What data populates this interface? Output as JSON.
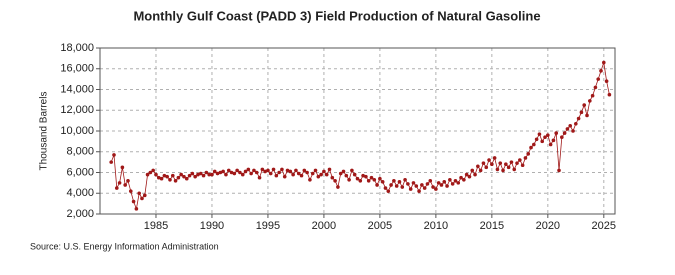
{
  "chart_data": {
    "type": "line",
    "title": "Monthly Gulf Coast (PADD 3) Field Production of Natural Gasoline",
    "ylabel": "Thousand Barrels",
    "source": "Source: U.S. Energy Information Administration",
    "xlim": [
      1980,
      2026
    ],
    "xticks": [
      1985,
      1990,
      1995,
      2000,
      2005,
      2010,
      2015,
      2020,
      2025
    ],
    "ylim": [
      2000,
      18000
    ],
    "yticks": [
      {
        "value": 2000,
        "label": "2,000"
      },
      {
        "value": 4000,
        "label": "4,000"
      },
      {
        "value": 6000,
        "label": "6,000"
      },
      {
        "value": 8000,
        "label": "8,000"
      },
      {
        "value": 10000,
        "label": "10,000"
      },
      {
        "value": 12000,
        "label": "12,000"
      },
      {
        "value": 14000,
        "label": "14,000"
      },
      {
        "value": 16000,
        "label": "16,000"
      },
      {
        "value": 18000,
        "label": "18,000"
      }
    ],
    "grid": true,
    "color": "#a01818",
    "x": [
      1981,
      1981.25,
      1981.5,
      1981.75,
      1982,
      1982.25,
      1982.5,
      1982.75,
      1983,
      1983.25,
      1983.5,
      1983.75,
      1984,
      1984.25,
      1984.5,
      1984.75,
      1985,
      1985.25,
      1985.5,
      1985.75,
      1986,
      1986.25,
      1986.5,
      1986.75,
      1987,
      1987.25,
      1987.5,
      1987.75,
      1988,
      1988.25,
      1988.5,
      1988.75,
      1989,
      1989.25,
      1989.5,
      1989.75,
      1990,
      1990.25,
      1990.5,
      1990.75,
      1991,
      1991.25,
      1991.5,
      1991.75,
      1992,
      1992.25,
      1992.5,
      1992.75,
      1993,
      1993.25,
      1993.5,
      1993.75,
      1994,
      1994.25,
      1994.5,
      1994.75,
      1995,
      1995.25,
      1995.5,
      1995.75,
      1996,
      1996.25,
      1996.5,
      1996.75,
      1997,
      1997.25,
      1997.5,
      1997.75,
      1998,
      1998.25,
      1998.5,
      1998.75,
      1999,
      1999.25,
      1999.5,
      1999.75,
      2000,
      2000.25,
      2000.5,
      2000.75,
      2001,
      2001.25,
      2001.5,
      2001.75,
      2002,
      2002.25,
      2002.5,
      2002.75,
      2003,
      2003.25,
      2003.5,
      2003.75,
      2004,
      2004.25,
      2004.5,
      2004.75,
      2005,
      2005.25,
      2005.5,
      2005.75,
      2006,
      2006.25,
      2006.5,
      2006.75,
      2007,
      2007.25,
      2007.5,
      2007.75,
      2008,
      2008.25,
      2008.5,
      2008.75,
      2009,
      2009.25,
      2009.5,
      2009.75,
      2010,
      2010.25,
      2010.5,
      2010.75,
      2011,
      2011.25,
      2011.5,
      2011.75,
      2012,
      2012.25,
      2012.5,
      2012.75,
      2013,
      2013.25,
      2013.5,
      2013.75,
      2014,
      2014.25,
      2014.5,
      2014.75,
      2015,
      2015.25,
      2015.5,
      2015.75,
      2016,
      2016.25,
      2016.5,
      2016.75,
      2017,
      2017.25,
      2017.5,
      2017.75,
      2018,
      2018.25,
      2018.5,
      2018.75,
      2019,
      2019.25,
      2019.5,
      2019.75,
      2020,
      2020.25,
      2020.5,
      2020.75,
      2021,
      2021.25,
      2021.5,
      2021.75,
      2022,
      2022.25,
      2022.5,
      2022.75,
      2023,
      2023.25,
      2023.5,
      2023.75,
      2024,
      2024.25,
      2024.5,
      2024.75,
      2025,
      2025.25,
      2025.5
    ],
    "values": [
      7000,
      7700,
      4500,
      5000,
      6500,
      4800,
      5200,
      4200,
      3200,
      2500,
      4000,
      3500,
      3800,
      5800,
      6000,
      6200,
      5800,
      5500,
      5400,
      5700,
      5600,
      5300,
      5700,
      5200,
      5500,
      5800,
      5600,
      5400,
      5700,
      5900,
      5600,
      5800,
      5900,
      5700,
      6000,
      5800,
      5800,
      6100,
      5900,
      6000,
      6100,
      5800,
      6200,
      6000,
      5900,
      6200,
      6000,
      5800,
      6100,
      6300,
      5900,
      6200,
      6000,
      5500,
      6300,
      6100,
      6200,
      5900,
      6300,
      5700,
      6000,
      6300,
      5600,
      6200,
      6100,
      5800,
      6200,
      5900,
      5700,
      6200,
      6000,
      5300,
      5900,
      6200,
      5600,
      5800,
      6100,
      5800,
      6300,
      5500,
      5200,
      4600,
      5900,
      6100,
      5700,
      5300,
      6200,
      5800,
      5400,
      5200,
      5700,
      5600,
      5200,
      5500,
      5300,
      4800,
      5400,
      5100,
      4500,
      4200,
      4800,
      5200,
      4700,
      5100,
      4600,
      5300,
      4900,
      4400,
      5000,
      4700,
      4200,
      4800,
      4500,
      4900,
      5200,
      4600,
      4400,
      5000,
      4800,
      5100,
      4700,
      5300,
      4900,
      5200,
      5000,
      5500,
      5300,
      5800,
      5600,
      6200,
      5800,
      6600,
      6200,
      6900,
      6500,
      7200,
      6800,
      7400,
      6300,
      6900,
      6200,
      6800,
      6500,
      7000,
      6300,
      6900,
      7200,
      6700,
      7400,
      7800,
      8400,
      8700,
      9200,
      9700,
      9000,
      9400,
      9600,
      8700,
      9100,
      9800,
      6200,
      9400,
      9800,
      10200,
      10500,
      10000,
      10700,
      11200,
      11800,
      12500,
      11500,
      12900,
      13400,
      14200,
      15000,
      15800,
      16600,
      14800,
      13500
    ]
  }
}
